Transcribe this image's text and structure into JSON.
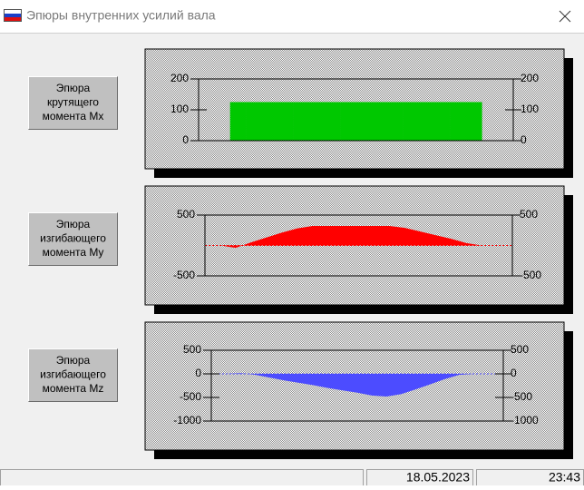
{
  "window": {
    "title": "Эпюры внутренних усилий вала"
  },
  "buttons": [
    {
      "lines": [
        "Эпюра",
        "крутящего",
        "момента Mx"
      ]
    },
    {
      "lines": [
        "Эпюра",
        "изгибающего",
        "момента My"
      ]
    },
    {
      "lines": [
        "Эпюра",
        "изгибающего",
        "момента Mz"
      ]
    }
  ],
  "chart_data": [
    {
      "type": "bar",
      "color": "#00c800",
      "values": [
        0,
        0,
        125,
        125,
        125,
        125,
        125,
        125,
        125,
        125,
        125,
        125,
        125,
        125,
        125,
        125,
        125,
        125,
        0,
        0
      ],
      "ylim": [
        0,
        200
      ],
      "yticks": [
        0,
        100,
        200
      ],
      "y2lim": [
        0,
        200
      ],
      "y2ticks": [
        0,
        100,
        200
      ]
    },
    {
      "type": "area",
      "color": "#ff0000",
      "values": [
        0,
        0,
        -40,
        50,
        130,
        210,
        280,
        320,
        320,
        320,
        320,
        320,
        320,
        290,
        230,
        170,
        110,
        40,
        0,
        0,
        0
      ],
      "ylim": [
        -500,
        500
      ],
      "yticks": [
        -500,
        500
      ],
      "y2lim": [
        -500,
        500
      ],
      "y2ticks": [
        -500,
        500
      ]
    },
    {
      "type": "area",
      "color": "#4c4cff",
      "values": [
        0,
        0,
        15,
        -20,
        -80,
        -140,
        -190,
        -240,
        -300,
        -350,
        -400,
        -460,
        -480,
        -430,
        -330,
        -220,
        -110,
        -20,
        0,
        0,
        0
      ],
      "ylim": [
        -1000,
        500
      ],
      "yticks": [
        -1000,
        -500,
        0,
        500
      ],
      "y2lim": [
        -1000,
        500
      ],
      "y2ticks": [
        -1000,
        -500,
        0,
        500
      ]
    }
  ],
  "status_bar": {
    "date": "18.05.2023",
    "time": "23:43"
  }
}
